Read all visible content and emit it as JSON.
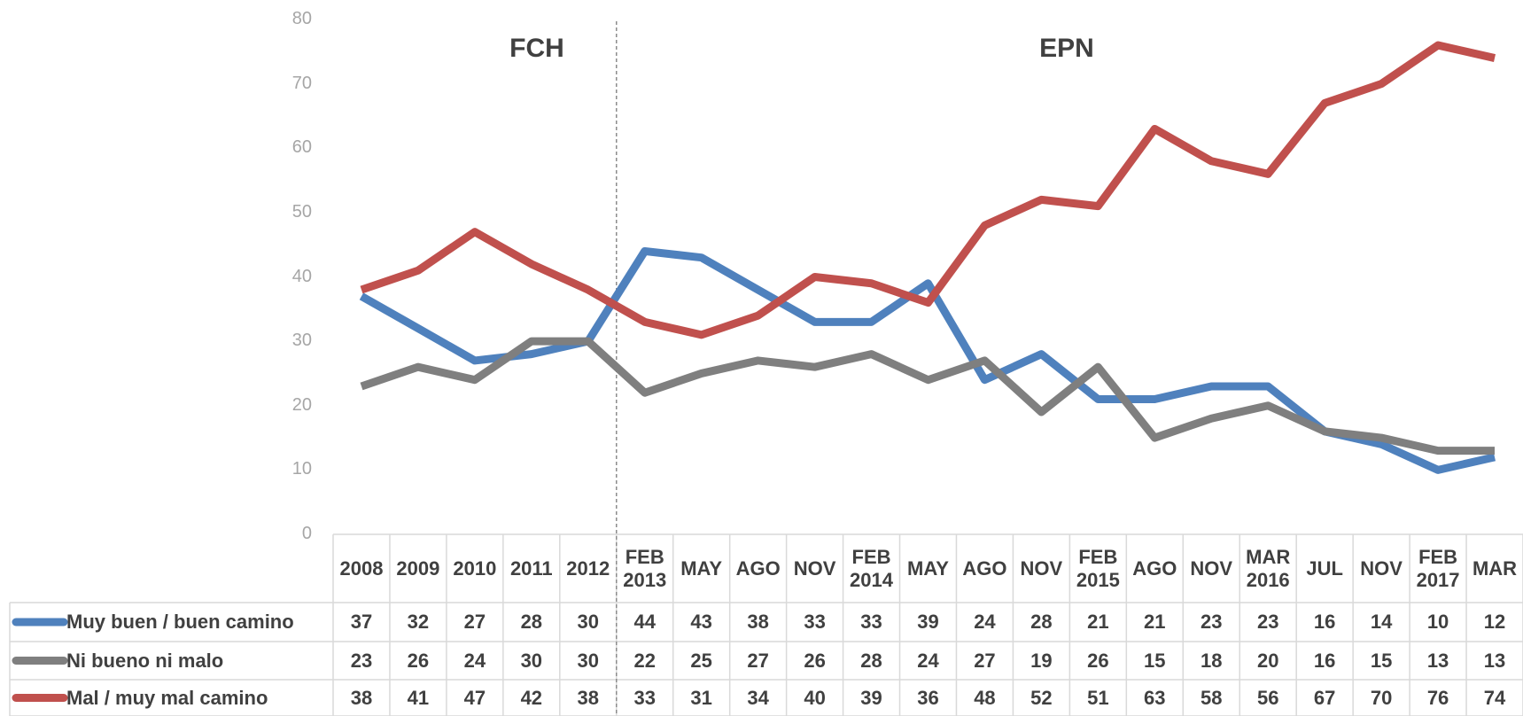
{
  "chart_data": {
    "type": "line",
    "annotations": [
      "FCH",
      "EPN"
    ],
    "categories": [
      "2008",
      "2009",
      "2010",
      "2011",
      "2012",
      "FEB 2013",
      "MAY",
      "AGO",
      "NOV",
      "FEB 2014",
      "MAY",
      "AGO",
      "NOV",
      "FEB 2015",
      "AGO",
      "NOV",
      "MAR 2016",
      "JUL",
      "NOV",
      "FEB 2017",
      "MAR"
    ],
    "series": [
      {
        "name": "Muy buen / buen camino",
        "color": "#4f81bd",
        "values": [
          37,
          32,
          27,
          28,
          30,
          44,
          43,
          38,
          33,
          33,
          39,
          24,
          28,
          21,
          21,
          23,
          23,
          16,
          14,
          10,
          12
        ]
      },
      {
        "name": "Ni bueno ni malo",
        "color": "#7f7f7f",
        "values": [
          23,
          26,
          24,
          30,
          30,
          22,
          25,
          27,
          26,
          28,
          24,
          27,
          19,
          26,
          15,
          18,
          20,
          16,
          15,
          13,
          13
        ]
      },
      {
        "name": "Mal / muy mal camino",
        "color": "#c0504d",
        "values": [
          38,
          41,
          47,
          42,
          38,
          33,
          31,
          34,
          40,
          39,
          36,
          48,
          52,
          51,
          63,
          58,
          56,
          67,
          70,
          76,
          74
        ]
      }
    ],
    "ylim": [
      0,
      80
    ],
    "yticks": [
      0,
      10,
      20,
      30,
      40,
      50,
      60,
      70,
      80
    ],
    "grid": false
  }
}
